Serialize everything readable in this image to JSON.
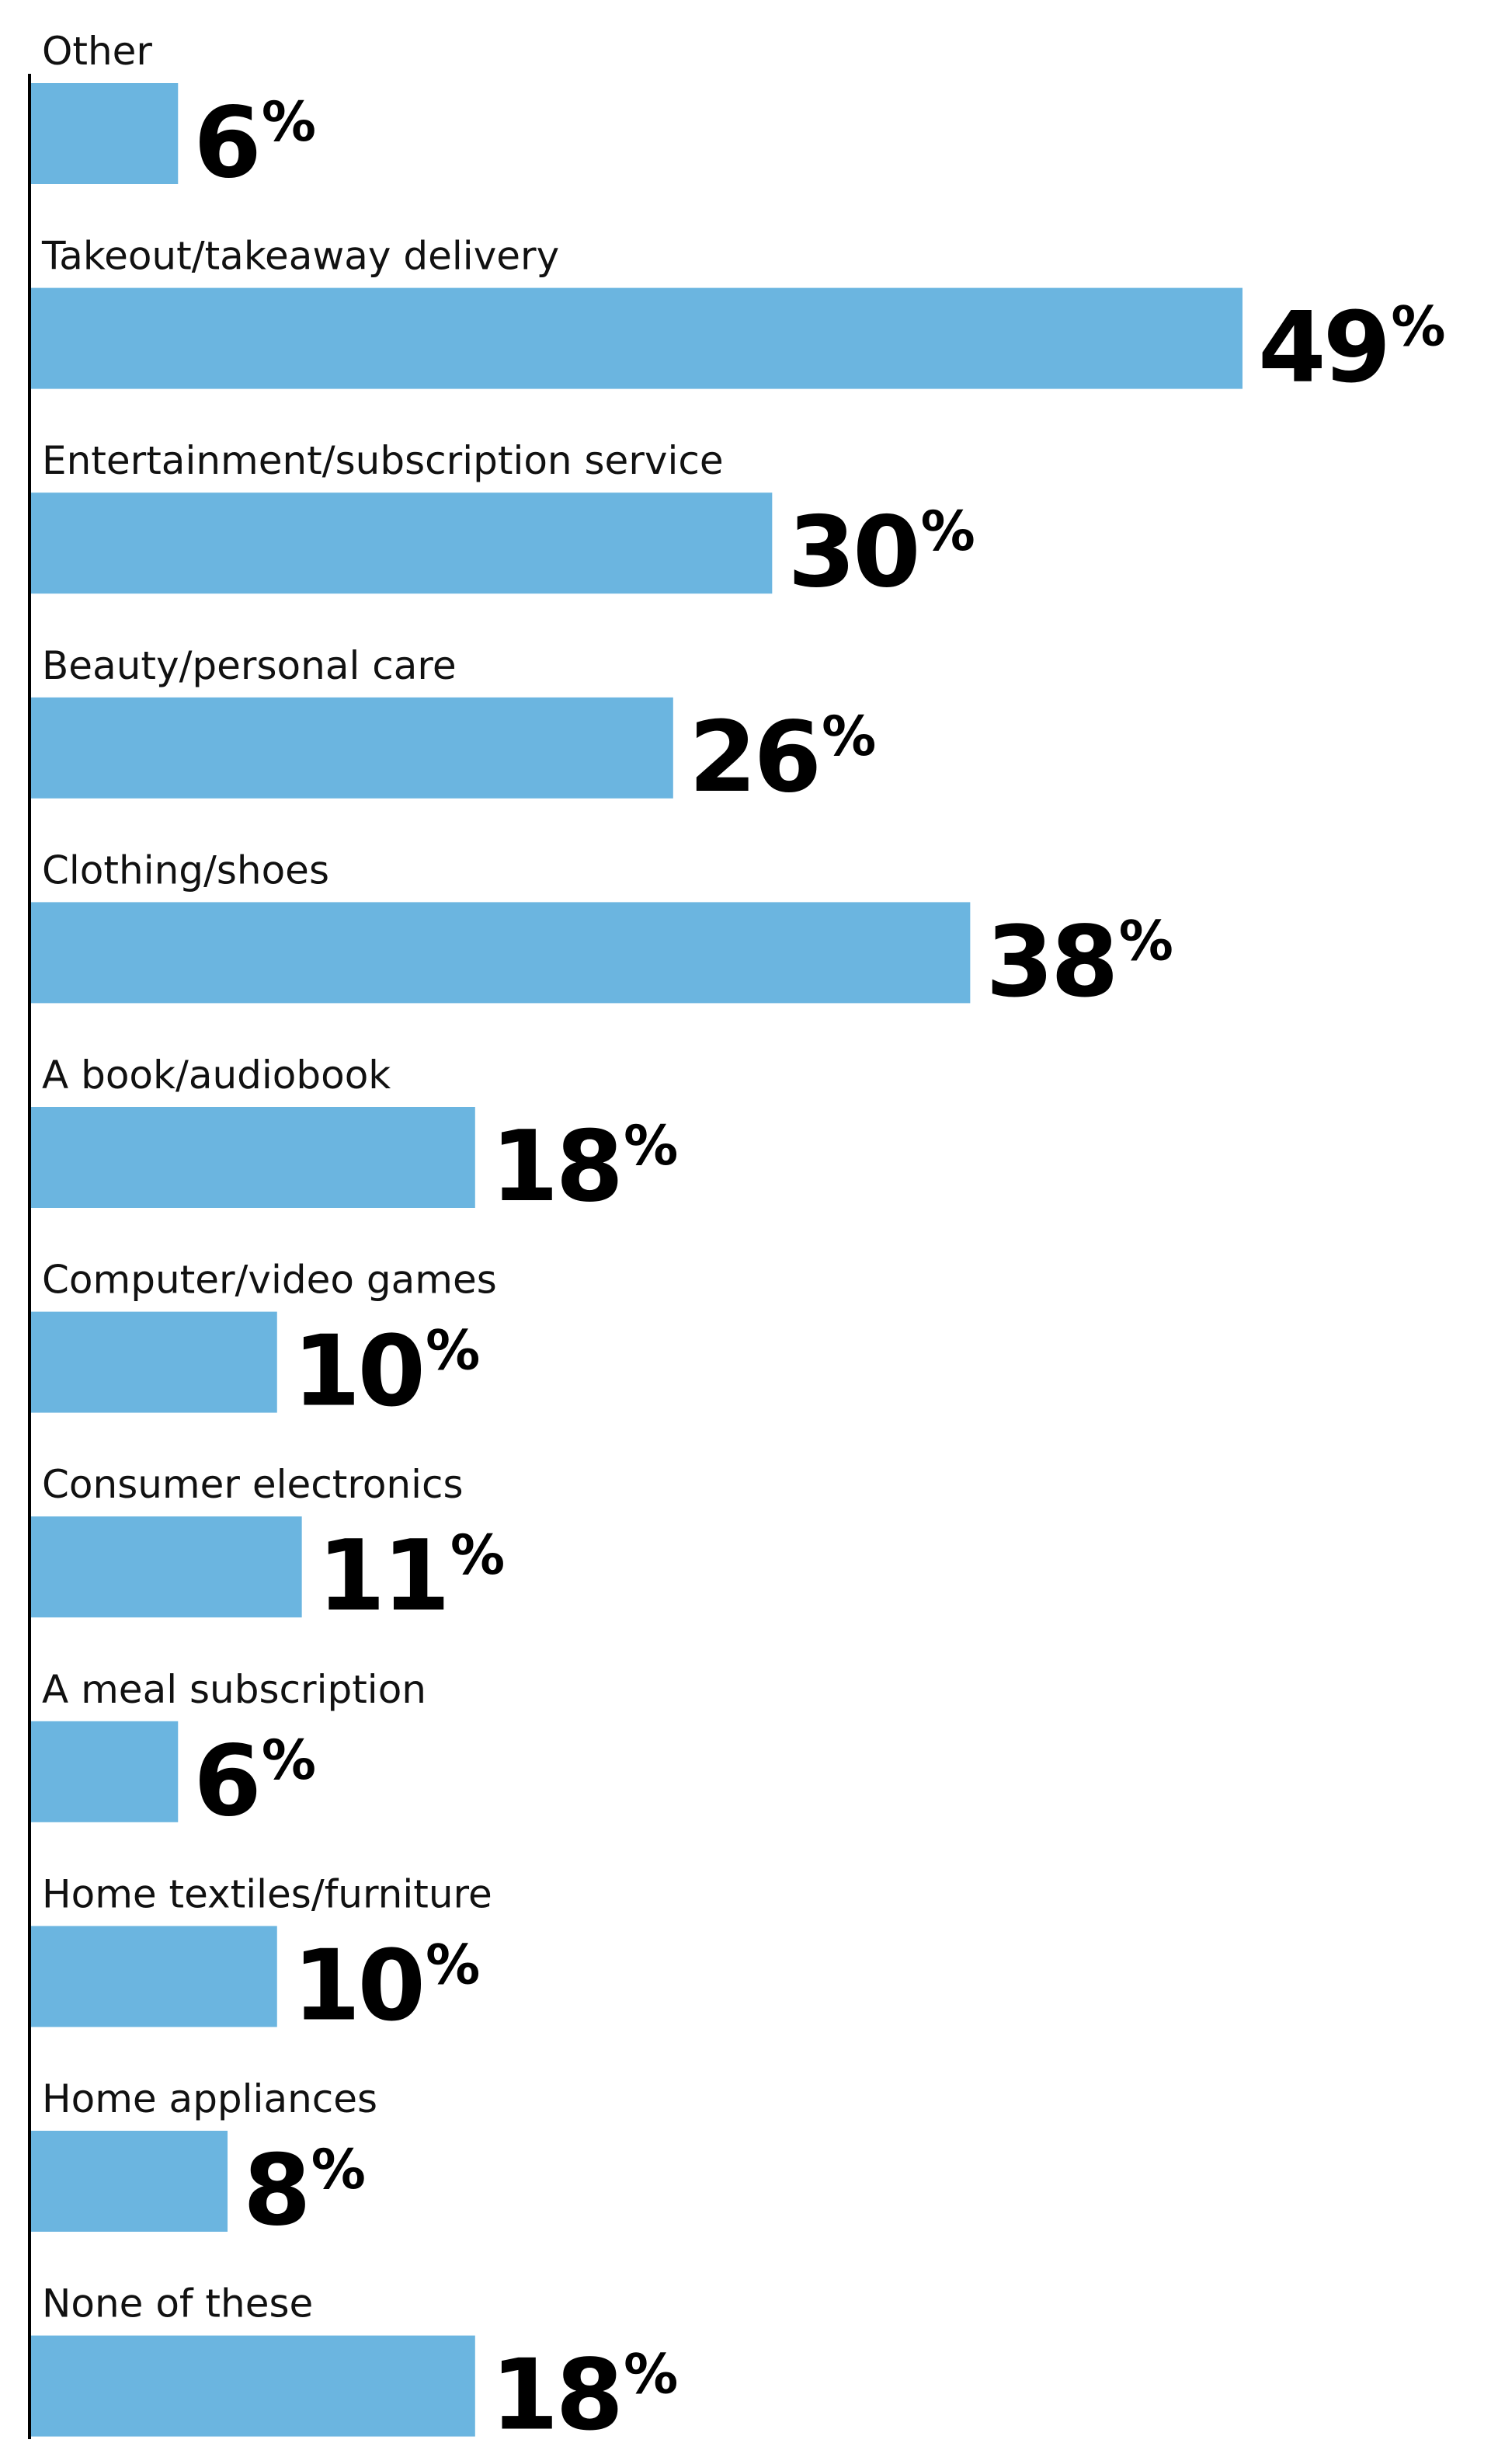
{
  "chart_data": {
    "type": "bar",
    "orientation": "horizontal",
    "title": "",
    "xlabel": "",
    "ylabel": "",
    "xlim": [
      0,
      49
    ],
    "grid": false,
    "unit": "%",
    "bar_color": "#6bb5e0",
    "axis_color": "#000000",
    "categories": [
      "Other",
      "Takeout/takeaway delivery",
      "Entertainment/subscription service",
      "Beauty/personal care",
      "Clothing/shoes",
      "A book/audiobook",
      "Computer/video games",
      "Consumer electronics",
      "A meal subscription",
      "Home textiles/furniture",
      "Home appliances",
      "None of these"
    ],
    "values": [
      6,
      49,
      30,
      26,
      38,
      18,
      10,
      11,
      6,
      10,
      8,
      18
    ]
  }
}
